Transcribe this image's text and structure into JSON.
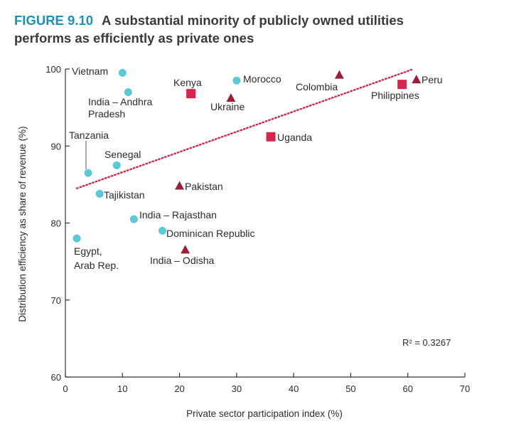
{
  "figure": {
    "label": "FIGURE 9.10",
    "title_line1": "A substantial minority of publicly owned utilities",
    "title_line2": "performs as efficiently as private ones"
  },
  "colors": {
    "circle": "#5bc8d8",
    "square": "#d6244a",
    "triangle": "#9e1e3a",
    "trend": "#d6244a"
  },
  "chart_data": {
    "type": "scatter",
    "xlabel": "Private sector participation index (%)",
    "ylabel": "Distribution efficiency as share of revenue (%)",
    "xlim": [
      0,
      70
    ],
    "ylim": [
      60,
      100
    ],
    "xticks": [
      0,
      10,
      20,
      30,
      40,
      50,
      60,
      70
    ],
    "yticks": [
      60,
      70,
      80,
      90,
      100
    ],
    "annotation": "R² = 0.3267",
    "trendline": {
      "x": [
        2,
        61
      ],
      "y": [
        84.5,
        100
      ]
    },
    "points": [
      {
        "label": "Vietnam",
        "x": 10,
        "y": 99.5,
        "marker": "circle"
      },
      {
        "label": "India – Andhra Pradesh",
        "x": 11,
        "y": 97,
        "marker": "circle"
      },
      {
        "label": "Tanzania",
        "x": 4,
        "y": 86.5,
        "marker": "circle"
      },
      {
        "label": "Senegal",
        "x": 9,
        "y": 87.5,
        "marker": "circle"
      },
      {
        "label": "Tajikistan",
        "x": 6,
        "y": 83.8,
        "marker": "circle"
      },
      {
        "label": "India – Rajasthan",
        "x": 12,
        "y": 80.5,
        "marker": "circle"
      },
      {
        "label": "Dominican Republic",
        "x": 17,
        "y": 79,
        "marker": "circle"
      },
      {
        "label": "Egypt, Arab Rep.",
        "x": 2,
        "y": 78,
        "marker": "circle"
      },
      {
        "label": "Morocco",
        "x": 30,
        "y": 98.5,
        "marker": "circle"
      },
      {
        "label": "Kenya",
        "x": 22,
        "y": 96.8,
        "marker": "square"
      },
      {
        "label": "Uganda",
        "x": 36,
        "y": 91.2,
        "marker": "square"
      },
      {
        "label": "Philippines",
        "x": 59,
        "y": 98,
        "marker": "square"
      },
      {
        "label": "Ukraine",
        "x": 29,
        "y": 96.2,
        "marker": "triangle"
      },
      {
        "label": "Colombia",
        "x": 48,
        "y": 99.2,
        "marker": "triangle"
      },
      {
        "label": "Peru",
        "x": 61.5,
        "y": 98.6,
        "marker": "triangle"
      },
      {
        "label": "Pakistan",
        "x": 20,
        "y": 84.8,
        "marker": "triangle"
      },
      {
        "label": "India – Odisha",
        "x": 21,
        "y": 76.5,
        "marker": "triangle"
      }
    ]
  }
}
